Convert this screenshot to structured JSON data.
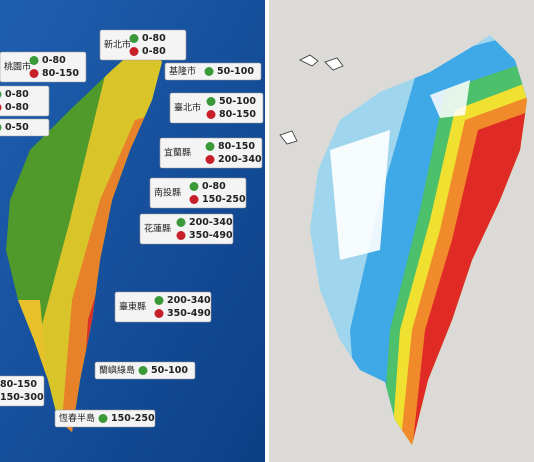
{
  "left_map": {
    "labels": [
      {
        "name": "新北市",
        "ranges": [
          "0-80",
          "0-80"
        ]
      },
      {
        "name": "基隆市",
        "ranges": [
          "50-100"
        ]
      },
      {
        "name": "桃園市",
        "ranges": [
          "0-80",
          "80-150"
        ]
      },
      {
        "name": null,
        "ranges": [
          "0-80",
          "0-80"
        ]
      },
      {
        "name": null,
        "ranges": [
          "0-50"
        ]
      },
      {
        "name": "臺北市",
        "ranges": [
          "50-100",
          "80-150"
        ]
      },
      {
        "name": "宜蘭縣",
        "ranges": [
          "80-150",
          "200-340"
        ]
      },
      {
        "name": "南投縣",
        "ranges": [
          "0-80",
          "150-250"
        ]
      },
      {
        "name": "花蓮縣",
        "ranges": [
          "200-340",
          "350-490"
        ]
      },
      {
        "name": "臺東縣",
        "ranges": [
          "200-340",
          "350-490"
        ]
      },
      {
        "name": "蘭嶼綠島",
        "ranges": [
          "50-100"
        ]
      },
      {
        "name": null,
        "ranges": [
          "80-150",
          "150-300"
        ]
      },
      {
        "name": "恆春半島",
        "ranges": [
          "150-250"
        ]
      }
    ]
  }
}
